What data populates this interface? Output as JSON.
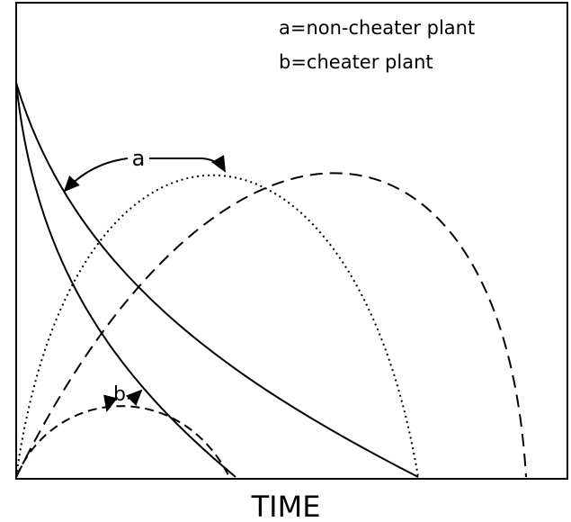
{
  "legend": [
    "a=non-cheater plant",
    "b=cheater plant"
  ],
  "curve_labels": [
    "a",
    "b"
  ],
  "x_axis_label": "TIME"
}
